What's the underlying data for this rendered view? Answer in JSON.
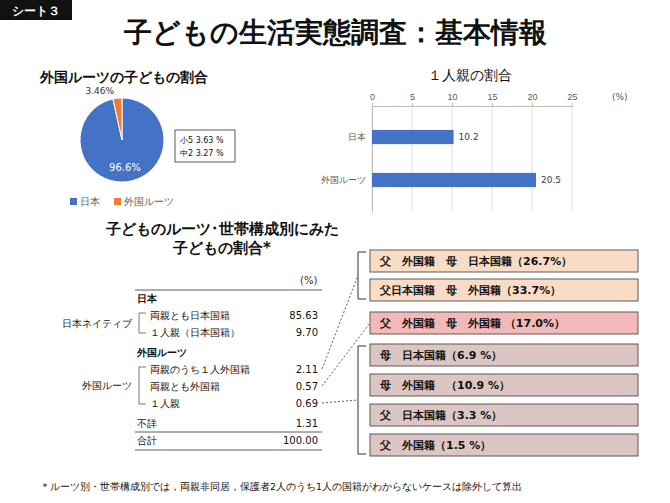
{
  "sheet_label": "シート３",
  "title": "子どもの生活実態調査：基本情報",
  "chart_data": [
    {
      "type": "pie",
      "title": "外国ルーツの子どもの割合",
      "categories": [
        "日本",
        "外国ルーツ"
      ],
      "values": [
        96.6,
        3.46
      ],
      "value_labels": [
        "96.6%",
        "3.46%"
      ],
      "colors": [
        "#4472c4",
        "#ed7d31"
      ],
      "data_labels": true,
      "legend": "bottom",
      "annotations": [
        "小5  3.63 %",
        "中2  3.27 %"
      ]
    },
    {
      "type": "bar",
      "title": "１人親の割合",
      "orientation": "horizontal",
      "categories": [
        "日本",
        "外国ルーツ"
      ],
      "values": [
        10.2,
        20.5
      ],
      "color": "#4472c4",
      "xlabel": "(%)",
      "xlim": [
        0,
        25
      ],
      "xticks": [
        0,
        5,
        10,
        15,
        20,
        25
      ],
      "grid": true,
      "data_labels": true
    }
  ],
  "table": {
    "title": [
      "子どものルーツ･世帯構成別にみた",
      "子どもの割合*"
    ],
    "unit": "(%)",
    "groups": [
      {
        "label": "日本ネイティブ",
        "header": "日本",
        "rows": [
          [
            "両親とも日本国籍",
            "85.63"
          ],
          [
            "１人親（日本国籍）",
            "9.70"
          ]
        ]
      },
      {
        "label": "外国ルーツ",
        "header": "外国ルーツ",
        "rows": [
          [
            "両親のうち１人外国籍",
            "2.11"
          ],
          [
            "両親とも外国籍",
            "0.57"
          ],
          [
            "１人親",
            "0.69"
          ]
        ]
      }
    ],
    "other_rows": [
      [
        "不詳",
        "1.31"
      ],
      [
        "合計",
        "100.00"
      ]
    ]
  },
  "boxes": [
    {
      "text": "父　外国籍　母　日本国籍（26.7%）",
      "color": "#f8dcc6"
    },
    {
      "text": "父日本国籍　母　外国籍（33.7%）",
      "color": "#f8dcc6"
    },
    {
      "text": "父　外国籍　母　外国籍 （17.0%）",
      "color": "#f2b9b9"
    },
    {
      "text": "母　日本国籍（6.9 %）",
      "color": "#dcc6c3"
    },
    {
      "text": "母　外国籍　（10.9 %）",
      "color": "#dcc6c3"
    },
    {
      "text": "父　日本国籍（3.3 %）",
      "color": "#dcc6c3"
    },
    {
      "text": "父　外国籍（1.5 %）",
      "color": "#dcc6c3"
    }
  ],
  "footnote": "＊ルーツ別・世帯構成別では，両親非同居，保護者2人のうち1人の国籍がわからないケースは除外して算出"
}
